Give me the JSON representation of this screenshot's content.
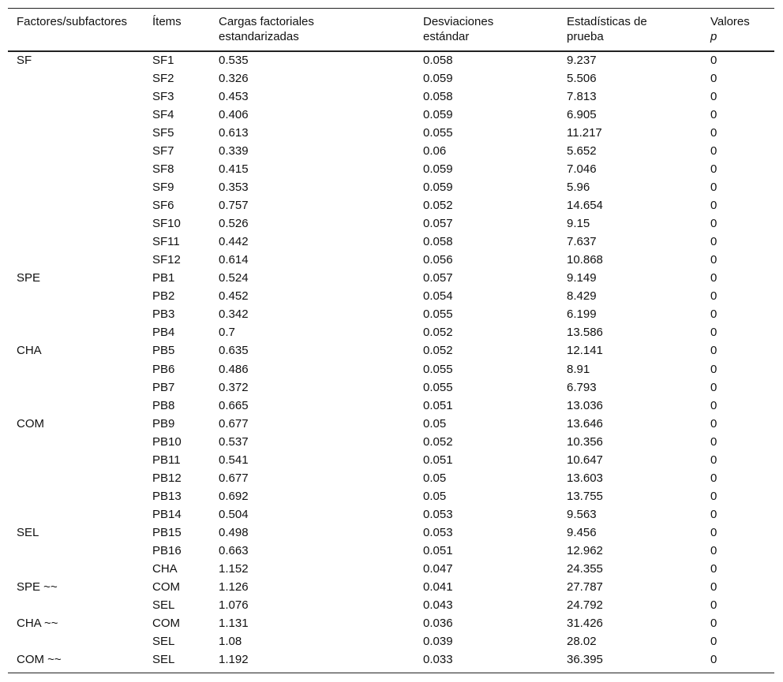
{
  "table": {
    "header": [
      {
        "text": "Factores/subfactores"
      },
      {
        "text": "Ítems"
      },
      {
        "text": "Cargas factoriales estandarizadas"
      },
      {
        "text": "Desviaciones estándar"
      },
      {
        "text": "Estadísticas de prueba"
      },
      {
        "text": "Valores",
        "italic": "p"
      }
    ],
    "rows": [
      [
        "SF",
        "SF1",
        "0.535",
        "0.058",
        "9.237",
        "0"
      ],
      [
        null,
        "SF2",
        "0.326",
        "0.059",
        "5.506",
        "0"
      ],
      [
        null,
        "SF3",
        "0.453",
        "0.058",
        "7.813",
        "0"
      ],
      [
        null,
        "SF4",
        "0.406",
        "0.059",
        "6.905",
        "0"
      ],
      [
        null,
        "SF5",
        "0.613",
        "0.055",
        "11.217",
        "0"
      ],
      [
        null,
        "SF7",
        "0.339",
        "0.06",
        "5.652",
        "0"
      ],
      [
        null,
        "SF8",
        "0.415",
        "0.059",
        "7.046",
        "0"
      ],
      [
        null,
        "SF9",
        "0.353",
        "0.059",
        "5.96",
        "0"
      ],
      [
        null,
        "SF6",
        "0.757",
        "0.052",
        "14.654",
        "0"
      ],
      [
        null,
        "SF10",
        "0.526",
        "0.057",
        "9.15",
        "0"
      ],
      [
        null,
        "SF11",
        "0.442",
        "0.058",
        "7.637",
        "0"
      ],
      [
        null,
        "SF12",
        "0.614",
        "0.056",
        "10.868",
        "0"
      ],
      [
        "SPE",
        "PB1",
        "0.524",
        "0.057",
        "9.149",
        "0"
      ],
      [
        null,
        "PB2",
        "0.452",
        "0.054",
        "8.429",
        "0"
      ],
      [
        null,
        "PB3",
        "0.342",
        "0.055",
        "6.199",
        "0"
      ],
      [
        null,
        "PB4",
        "0.7",
        "0.052",
        "13.586",
        "0"
      ],
      [
        "CHA",
        "PB5",
        "0.635",
        "0.052",
        "12.141",
        "0"
      ],
      [
        null,
        "PB6",
        "0.486",
        "0.055",
        "8.91",
        "0"
      ],
      [
        null,
        "PB7",
        "0.372",
        "0.055",
        "6.793",
        "0"
      ],
      [
        null,
        "PB8",
        "0.665",
        "0.051",
        "13.036",
        "0"
      ],
      [
        "COM",
        "PB9",
        "0.677",
        "0.05",
        "13.646",
        "0"
      ],
      [
        null,
        "PB10",
        "0.537",
        "0.052",
        "10.356",
        "0"
      ],
      [
        null,
        "PB11",
        "0.541",
        "0.051",
        "10.647",
        "0"
      ],
      [
        null,
        "PB12",
        "0.677",
        "0.05",
        "13.603",
        "0"
      ],
      [
        null,
        "PB13",
        "0.692",
        "0.05",
        "13.755",
        "0"
      ],
      [
        null,
        "PB14",
        "0.504",
        "0.053",
        "9.563",
        "0"
      ],
      [
        "SEL",
        "PB15",
        "0.498",
        "0.053",
        "9.456",
        "0"
      ],
      [
        null,
        "PB16",
        "0.663",
        "0.051",
        "12.962",
        "0"
      ],
      [
        null,
        "CHA",
        "1.152",
        "0.047",
        "24.355",
        "0"
      ],
      [
        "SPE ~~",
        "COM",
        "1.126",
        "0.041",
        "27.787",
        "0"
      ],
      [
        null,
        "SEL",
        "1.076",
        "0.043",
        "24.792",
        "0"
      ],
      [
        "CHA ~~",
        "COM",
        "1.131",
        "0.036",
        "31.426",
        "0"
      ],
      [
        null,
        "SEL",
        "1.08",
        "0.039",
        "28.02",
        "0"
      ],
      [
        "COM ~~",
        "SEL",
        "1.192",
        "0.033",
        "36.395",
        "0"
      ]
    ]
  }
}
